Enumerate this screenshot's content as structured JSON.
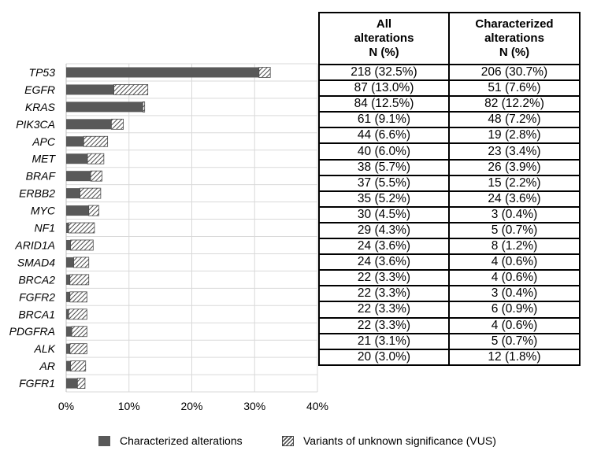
{
  "chart_data": {
    "type": "bar",
    "orientation": "horizontal",
    "stacked": true,
    "categories": [
      "TP53",
      "EGFR",
      "KRAS",
      "PIK3CA",
      "APC",
      "MET",
      "BRAF",
      "ERBB2",
      "MYC",
      "NF1",
      "ARID1A",
      "SMAD4",
      "BRCA2",
      "FGFR2",
      "BRCA1",
      "PDGFRA",
      "ALK",
      "AR",
      "FGFR1"
    ],
    "series": [
      {
        "name": "Characterized alterations",
        "color": "#595959",
        "pattern": "solid",
        "values": [
          30.7,
          7.6,
          12.2,
          7.2,
          2.8,
          3.4,
          3.9,
          2.2,
          3.6,
          0.4,
          0.7,
          1.2,
          0.6,
          0.6,
          0.4,
          0.9,
          0.6,
          0.7,
          1.8
        ]
      },
      {
        "name": "Variants of unknown significance (VUS)",
        "color": "#ffffff",
        "pattern": "hatch",
        "values": [
          1.8,
          5.4,
          0.3,
          1.9,
          3.8,
          2.6,
          1.8,
          3.3,
          1.6,
          4.1,
          3.6,
          2.4,
          3.0,
          2.7,
          2.9,
          2.4,
          2.7,
          2.4,
          1.2
        ]
      }
    ],
    "x_ticks": [
      "0%",
      "10%",
      "20%",
      "30%",
      "40%"
    ],
    "xlim": [
      0,
      40
    ],
    "grid": true,
    "legend_position": "bottom"
  },
  "table": {
    "headers": [
      [
        "All",
        "alterations",
        "N (%)"
      ],
      [
        "Characterized",
        "alterations",
        "N (%)"
      ]
    ],
    "rows": [
      [
        "218 (32.5%)",
        "206 (30.7%)"
      ],
      [
        "87 (13.0%)",
        "51 (7.6%)"
      ],
      [
        "84 (12.5%)",
        "82 (12.2%)"
      ],
      [
        "61 (9.1%)",
        "48 (7.2%)"
      ],
      [
        "44 (6.6%)",
        "19 (2.8%)"
      ],
      [
        "40 (6.0%)",
        "23 (3.4%)"
      ],
      [
        "38 (5.7%)",
        "26 (3.9%)"
      ],
      [
        "37 (5.5%)",
        "15 (2.2%)"
      ],
      [
        "35 (5.2%)",
        "24 (3.6%)"
      ],
      [
        "30 (4.5%)",
        "3 (0.4%)"
      ],
      [
        "29 (4.3%)",
        "5 (0.7%)"
      ],
      [
        "24 (3.6%)",
        "8 (1.2%)"
      ],
      [
        "24 (3.6%)",
        "4 (0.6%)"
      ],
      [
        "22 (3.3%)",
        "4 (0.6%)"
      ],
      [
        "22 (3.3%)",
        "3 (0.4%)"
      ],
      [
        "22 (3.3%)",
        "6 (0.9%)"
      ],
      [
        "22 (3.3%)",
        "4 (0.6%)"
      ],
      [
        "21 (3.1%)",
        "5 (0.7%)"
      ],
      [
        "20 (3.0%)",
        "12 (1.8%)"
      ]
    ]
  },
  "legend": {
    "items": [
      {
        "label": "Characterized alterations",
        "icon": "solid-swatch"
      },
      {
        "label": "Variants of unknown significance (VUS)",
        "icon": "hatched-swatch"
      }
    ]
  }
}
